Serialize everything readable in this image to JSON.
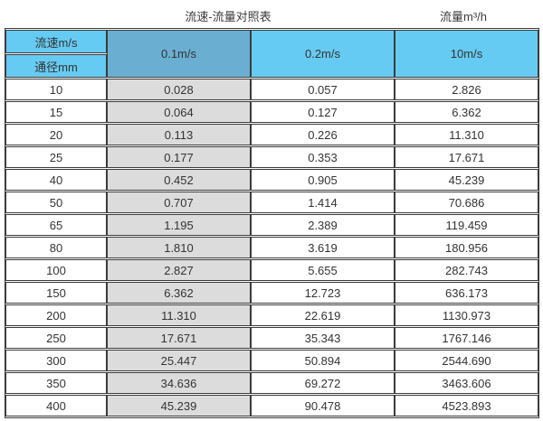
{
  "page": {
    "title_left": "流速-流量对照表",
    "title_right": "流量m³/h"
  },
  "colors": {
    "header_light_cyan": "#66CBF2",
    "header_dark_blue": "#6AAFD2",
    "gray_column": "#DCDCDC",
    "border": "#3b3b3b",
    "text": "#333333"
  },
  "table": {
    "corner_top": "流速m/s",
    "corner_bottom": "通径mm",
    "columns": [
      "0.1m/s",
      "0.2m/s",
      "10m/s"
    ],
    "rows": [
      {
        "dn": "10",
        "v1": "0.028",
        "v2": "0.057",
        "v3": "2.826"
      },
      {
        "dn": "15",
        "v1": "0.064",
        "v2": "0.127",
        "v3": "6.362"
      },
      {
        "dn": "20",
        "v1": "0.113",
        "v2": "0.226",
        "v3": "11.310"
      },
      {
        "dn": "25",
        "v1": "0.177",
        "v2": "0.353",
        "v3": "17.671"
      },
      {
        "dn": "40",
        "v1": "0.452",
        "v2": "0.905",
        "v3": "45.239"
      },
      {
        "dn": "50",
        "v1": "0.707",
        "v2": "1.414",
        "v3": "70.686"
      },
      {
        "dn": "65",
        "v1": "1.195",
        "v2": "2.389",
        "v3": "119.459"
      },
      {
        "dn": "80",
        "v1": "1.810",
        "v2": "3.619",
        "v3": "180.956"
      },
      {
        "dn": "100",
        "v1": "2.827",
        "v2": "5.655",
        "v3": "282.743"
      },
      {
        "dn": "150",
        "v1": "6.362",
        "v2": "12.723",
        "v3": "636.173"
      },
      {
        "dn": "200",
        "v1": "11.310",
        "v2": "22.619",
        "v3": "1130.973"
      },
      {
        "dn": "250",
        "v1": "17.671",
        "v2": "35.343",
        "v3": "1767.146"
      },
      {
        "dn": "300",
        "v1": "25.447",
        "v2": "50.894",
        "v3": "2544.690"
      },
      {
        "dn": "350",
        "v1": "34.636",
        "v2": "69.272",
        "v3": "3463.606"
      },
      {
        "dn": "400",
        "v1": "45.239",
        "v2": "90.478",
        "v3": "4523.893"
      }
    ]
  }
}
